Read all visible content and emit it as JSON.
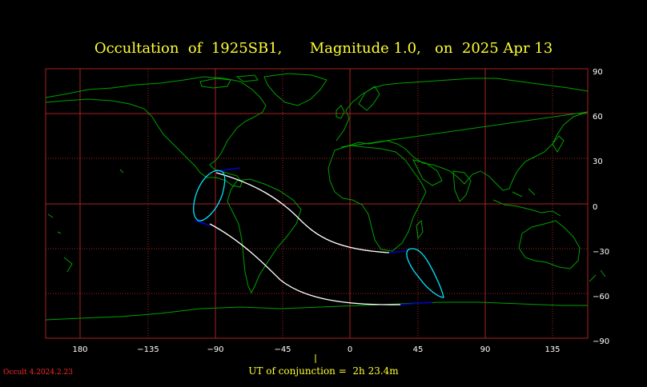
{
  "title": {
    "object_label": "Occultation  of  1925SB1,",
    "magnitude_label": "Magnitude 1.0,",
    "date_label": "on  2025 Apr 13"
  },
  "axes": {
    "longitude_ticks": [
      "180",
      "−135",
      "−90",
      "−45",
      "0",
      "45",
      "90",
      "135"
    ],
    "latitude_ticks": [
      "90",
      "60",
      "30",
      "0",
      "−30",
      "−60",
      "−90"
    ]
  },
  "footer": {
    "conjunction_label": "UT of conjunction =",
    "conjunction_value": "2h 23.4m"
  },
  "version": "Occult 4.2024.2.23",
  "colors": {
    "title": "#ffff33",
    "grid": "#aa2222",
    "coast": "#00a000",
    "shadow_path": "#ffffff",
    "limit_curve": "#00e5ff",
    "daylight_segment": "#0000cc",
    "version": "#ff2a2a"
  }
}
